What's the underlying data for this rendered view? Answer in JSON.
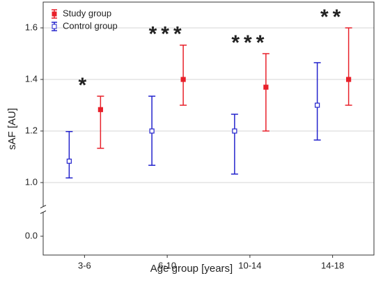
{
  "chart_data": {
    "type": "errorbar",
    "y_label": "sAF [AU]",
    "x_label": "Age group [years]",
    "categories": [
      "3-6",
      "6-10",
      "10-14",
      "14-18"
    ],
    "series": [
      {
        "name": "Study group",
        "color": "#e8202a",
        "marker": "filled",
        "values": [
          1.283,
          1.4,
          1.37,
          1.4
        ],
        "lower": [
          1.133,
          1.3,
          1.2,
          1.3
        ],
        "upper": [
          1.335,
          1.533,
          1.5,
          1.6
        ]
      },
      {
        "name": "Control group",
        "color": "#2222cc",
        "marker": "open",
        "values": [
          1.083,
          1.2,
          1.2,
          1.3
        ],
        "lower": [
          1.018,
          1.067,
          1.033,
          1.165
        ],
        "upper": [
          1.198,
          1.335,
          1.265,
          1.465
        ]
      }
    ],
    "annotations": [
      {
        "text": "*",
        "category": "3-6"
      },
      {
        "text": "***",
        "category": "6-10"
      },
      {
        "text": "***",
        "category": "10-14"
      },
      {
        "text": "**",
        "category": "14-18"
      }
    ],
    "ylim": [
      0,
      1.7
    ],
    "axis_break": [
      0,
      1
    ],
    "yticks": [
      {
        "value": 0,
        "label": "0.0"
      },
      {
        "value": 1,
        "label": "1.0"
      },
      1.2,
      1.4,
      1.6
    ],
    "grid": true,
    "legend": "top-left"
  }
}
